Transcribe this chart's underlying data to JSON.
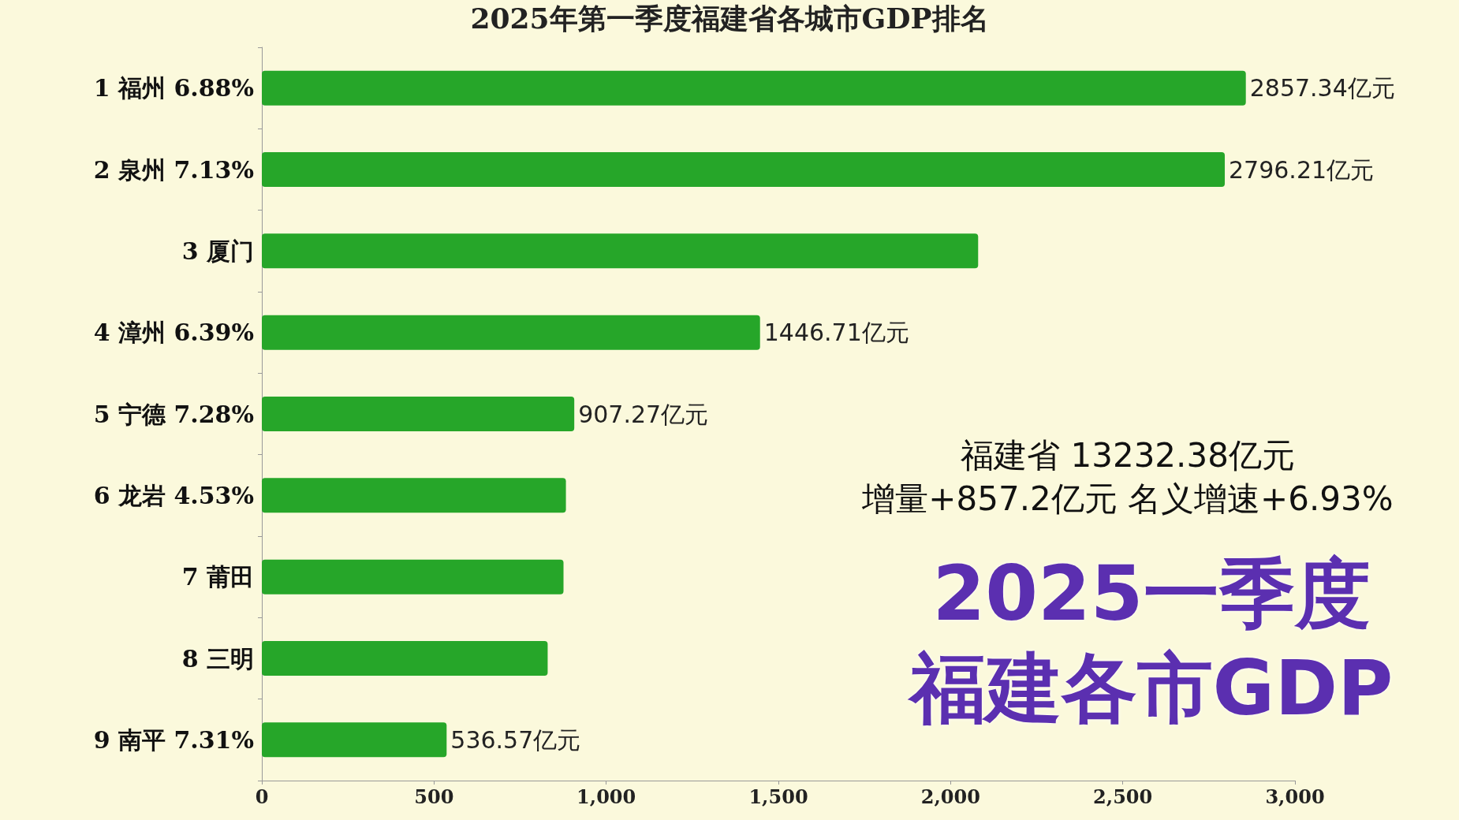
{
  "chart_data": {
    "type": "bar",
    "orientation": "horizontal",
    "title": "2025年第一季度福建省各城市GDP排名",
    "categories": [
      "1 福州 6.88%",
      "2 泉州 7.13%",
      "3 厦门",
      "4 漳州 6.39%",
      "5 宁德 7.28%",
      "6 龙岩 4.53%",
      "7 莆田",
      "8 三明",
      "9 南平 7.31%"
    ],
    "values": [
      2857.34,
      2796.21,
      2080,
      1446.71,
      907.27,
      883,
      876,
      830,
      536.57
    ],
    "value_labels": [
      "2857.34亿元",
      "2796.21亿元",
      null,
      "1446.71亿元",
      "907.27亿元",
      null,
      null,
      null,
      "536.57亿元"
    ],
    "color": "#26a629",
    "xlim": [
      0,
      3000
    ],
    "xticks": [
      0,
      500,
      {
        "value": 1000,
        "label": "1,000"
      },
      {
        "value": 1500,
        "label": "1,500"
      },
      {
        "value": 2000,
        "label": "2,000"
      },
      {
        "value": 2500,
        "label": "2,500"
      },
      {
        "value": 3000,
        "label": "3,000"
      }
    ],
    "grid": false,
    "annotations": [
      "福建省 13232.38亿元",
      "增量+857.2亿元 名义增速+6.93%",
      "2025一季度",
      "福建各市GDP"
    ]
  }
}
